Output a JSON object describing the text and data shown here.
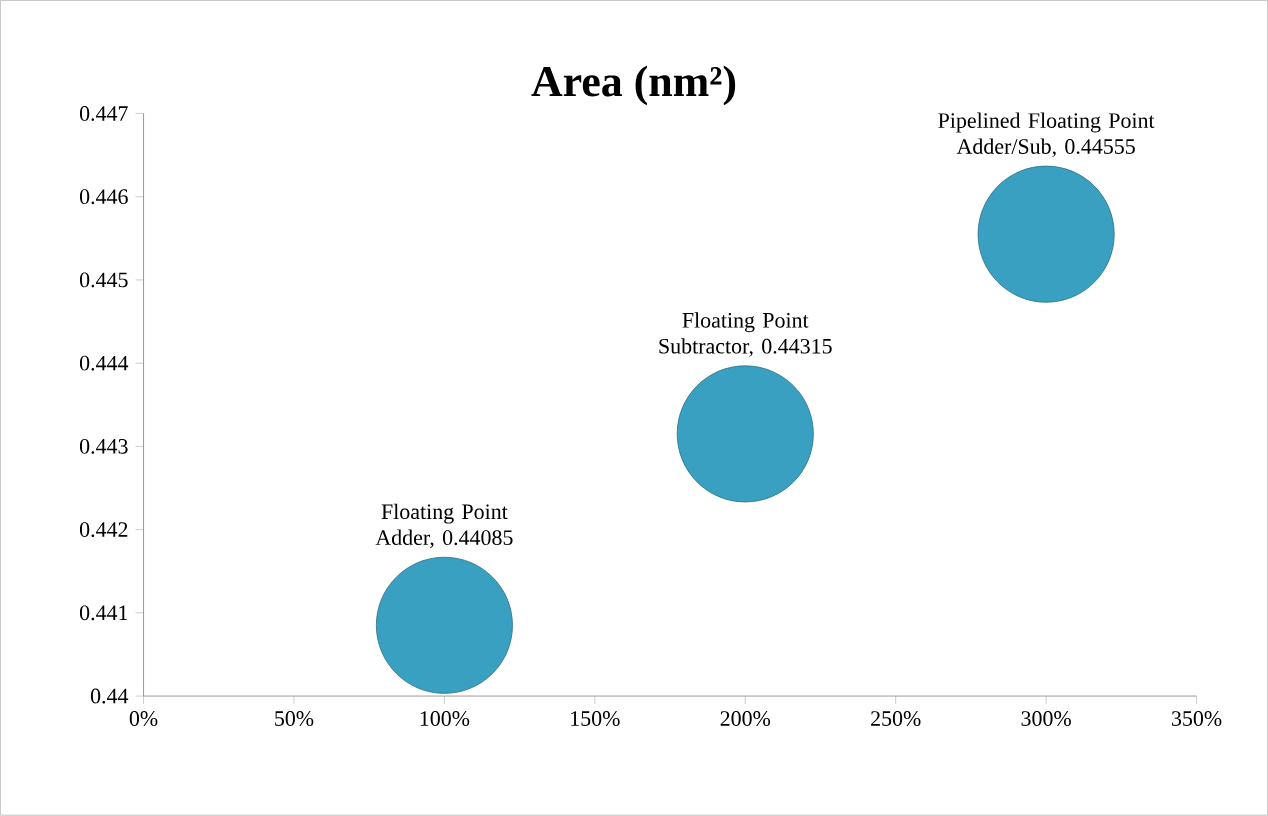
{
  "chart_data": {
    "type": "bubble",
    "title": "Area (nm²)",
    "x": [
      100,
      200,
      300
    ],
    "series": [
      {
        "color": "#3aa0c2",
        "values": [
          0.44085,
          0.44315,
          0.44555
        ],
        "sizes": [
          1,
          1,
          1
        ],
        "value_labels": [
          "Floating Point Adder, 0.44085",
          "Floating Point Subtractor, 0.44315",
          "Pipelined Floating Point Adder/Sub, 0.44555"
        ]
      }
    ],
    "xlim": [
      0,
      350
    ],
    "xticks": [
      {
        "value": 0,
        "label": "0%"
      },
      {
        "value": 50,
        "label": "50%"
      },
      {
        "value": 100,
        "label": "100%"
      },
      {
        "value": 150,
        "label": "150%"
      },
      {
        "value": 200,
        "label": "200%"
      },
      {
        "value": 250,
        "label": "250%"
      },
      {
        "value": 300,
        "label": "300%"
      },
      {
        "value": 350,
        "label": "350%"
      }
    ],
    "ylim": [
      0.44,
      0.447
    ],
    "yticks": [
      0.44,
      0.441,
      0.442,
      0.443,
      0.444,
      0.445,
      0.446,
      0.447
    ]
  }
}
